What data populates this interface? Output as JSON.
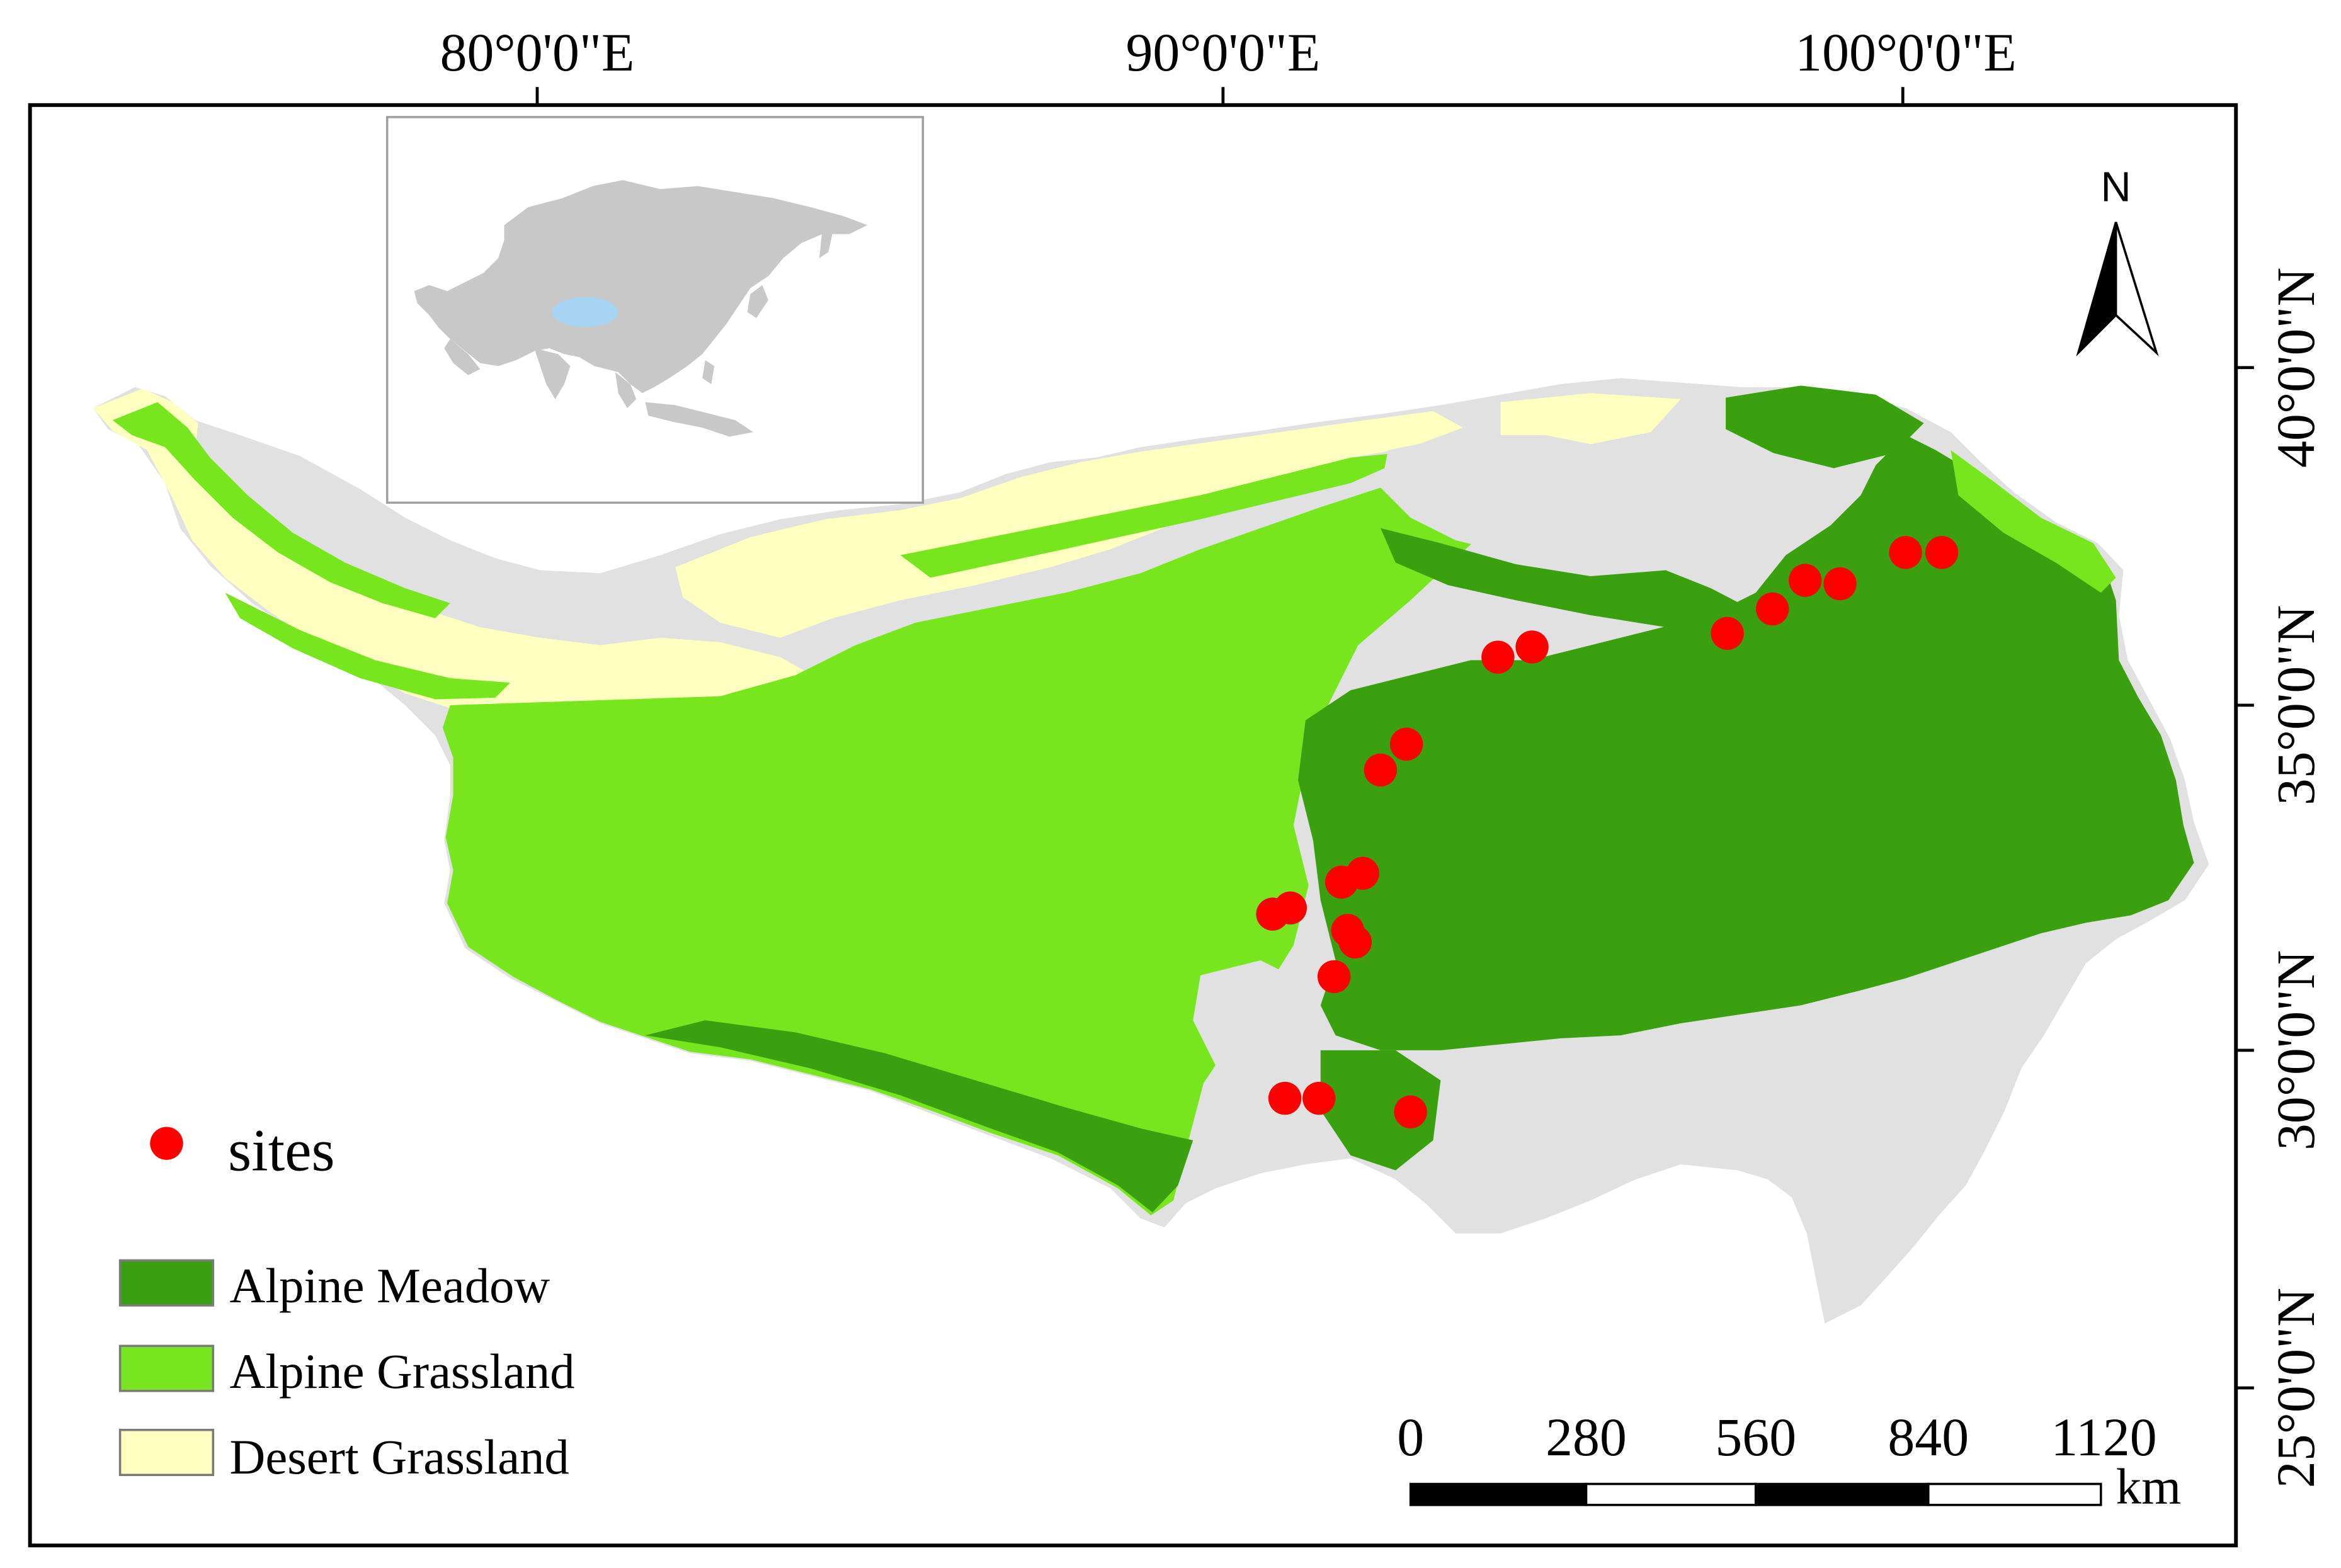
{
  "map": {
    "longitude_labels": [
      "80°0'0\"E",
      "90°0'0\"E",
      "100°0'0\"E"
    ],
    "latitude_labels": [
      "40°0'0\"N",
      "35°0'0\"N",
      "30°0'0\"N",
      "25°0'0\"N"
    ],
    "north_arrow_label": "N",
    "legend": {
      "sites_label": "sites",
      "classes": [
        {
          "label": "Alpine Meadow",
          "color": "#3aa00f"
        },
        {
          "label": "Alpine Grassland",
          "color": "#78e61e"
        },
        {
          "label": "Desert Grassland",
          "color": "#ffffc0"
        }
      ]
    },
    "scale_bar": {
      "ticks": [
        "0",
        "280",
        "560",
        "840",
        "1120"
      ],
      "unit": "km"
    },
    "colors": {
      "site_marker": "#ff0000",
      "other_land": "#e1e1e1",
      "inset_land": "#c8c8c8",
      "inset_study_area": "#a6d4f2"
    },
    "sites": [
      {
        "lon": 100.04,
        "lat": 37.28
      },
      {
        "lon": 100.57,
        "lat": 37.28
      },
      {
        "lon": 98.57,
        "lat": 36.87
      },
      {
        "lon": 99.08,
        "lat": 36.82
      },
      {
        "lon": 98.09,
        "lat": 36.45
      },
      {
        "lon": 97.43,
        "lat": 36.09
      },
      {
        "lon": 94.57,
        "lat": 35.89
      },
      {
        "lon": 94.07,
        "lat": 35.74
      },
      {
        "lon": 92.73,
        "lat": 34.46
      },
      {
        "lon": 92.35,
        "lat": 34.08
      },
      {
        "lon": 92.09,
        "lat": 32.56
      },
      {
        "lon": 91.78,
        "lat": 32.43
      },
      {
        "lon": 91.03,
        "lat": 32.05
      },
      {
        "lon": 90.77,
        "lat": 31.96
      },
      {
        "lon": 91.87,
        "lat": 31.72
      },
      {
        "lon": 91.98,
        "lat": 31.55
      },
      {
        "lon": 91.67,
        "lat": 31.04
      },
      {
        "lon": 90.95,
        "lat": 29.25
      },
      {
        "lon": 91.45,
        "lat": 29.25
      },
      {
        "lon": 92.79,
        "lat": 29.05
      }
    ]
  }
}
